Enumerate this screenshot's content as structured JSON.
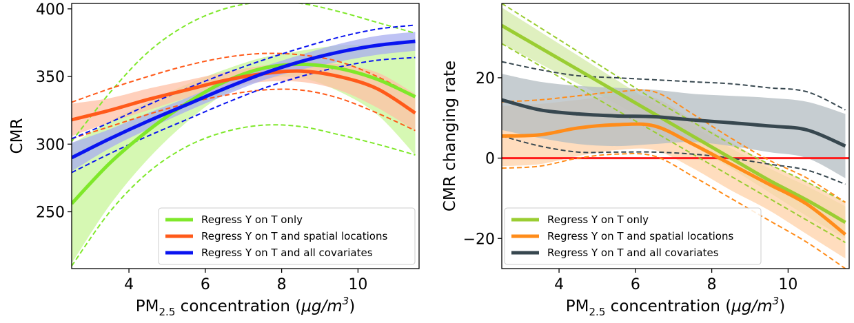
{
  "chart_data": [
    {
      "type": "line",
      "xlabel": "PM2.5 concentration (μg/m3)",
      "xlabel_parts": {
        "base": "PM",
        "sub": "2.5",
        "mid": " concentration (",
        "unit": "μg/m",
        "sup": "3",
        "end": ")"
      },
      "ylabel": "CMR",
      "xlim": [
        2.5,
        11.6
      ],
      "ylim": [
        208,
        404
      ],
      "x_ticks": [
        4,
        6,
        8,
        10
      ],
      "y_ticks": [
        250,
        300,
        350,
        400
      ],
      "x_tick_labels": [
        "4",
        "6",
        "8",
        "10"
      ],
      "y_tick_labels": [
        "250",
        "300",
        "350",
        "400"
      ],
      "grid": false,
      "legend_placement": "lower-right",
      "series": [
        {
          "name": "Regress Y on T only",
          "color": "#7fe82a",
          "fill": "#c8f59a",
          "x": [
            2.5,
            3.5,
            4.5,
            5.5,
            6.5,
            7.5,
            8.5,
            9.5,
            10.5,
            11.5
          ],
          "y": [
            256,
            286,
            310,
            330,
            346,
            356,
            359,
            356,
            348,
            335
          ],
          "band_lower": [
            212,
            255,
            289,
            316,
            337,
            348,
            349,
            339,
            322,
            292
          ],
          "band_upper": [
            300,
            317,
            331,
            344,
            355,
            364,
            369,
            373,
            374,
            378
          ],
          "dashed_lower": [
            210,
            250,
            279,
            298,
            309,
            314,
            313,
            307,
            300,
            292
          ],
          "dashed_upper": [
            302,
            338,
            368,
            388,
            400,
            405,
            404,
            398,
            390,
            382
          ]
        },
        {
          "name": "Regress Y on T and spatial locations",
          "color": "#ff5a1a",
          "fill": "#ffc0a6",
          "x": [
            2.5,
            3.5,
            4.5,
            5.5,
            6.5,
            7.5,
            8.5,
            9.5,
            10.5,
            11.5
          ],
          "y": [
            318,
            325,
            333,
            340,
            347,
            352,
            354,
            350,
            341,
            323
          ],
          "band_lower": [
            306,
            316,
            325,
            334,
            341,
            346,
            346,
            340,
            327,
            310
          ],
          "band_upper": [
            330,
            334,
            341,
            347,
            353,
            358,
            361,
            359,
            353,
            337
          ],
          "dashed_lower": [
            304,
            313,
            322,
            330,
            336,
            340,
            340,
            334,
            323,
            310
          ],
          "dashed_upper": [
            331,
            341,
            350,
            358,
            364,
            367,
            366,
            361,
            350,
            335
          ]
        },
        {
          "name": "Regress Y on T and all covariates",
          "color": "#0a14f0",
          "fill": "#a8aef0",
          "x": [
            2.5,
            3.5,
            4.5,
            5.5,
            6.5,
            7.5,
            8.5,
            9.5,
            10.5,
            11.5
          ],
          "y": [
            290,
            304,
            317,
            329,
            341,
            352,
            361,
            368,
            373,
            376
          ],
          "band_lower": [
            280,
            297,
            311,
            324,
            336,
            347,
            355,
            361,
            366,
            369
          ],
          "band_upper": [
            301,
            311,
            323,
            334,
            346,
            357,
            366,
            374,
            380,
            383
          ],
          "dashed_lower": [
            279,
            293,
            306,
            318,
            330,
            341,
            350,
            357,
            362,
            364
          ],
          "dashed_upper": [
            304,
            316,
            329,
            341,
            352,
            362,
            371,
            379,
            385,
            388
          ]
        }
      ]
    },
    {
      "type": "line",
      "xlabel": "PM2.5 concentration (μg/m3)",
      "xlabel_parts": {
        "base": "PM",
        "sub": "2.5",
        "mid": " concentration (",
        "unit": "μg/m",
        "sup": "3",
        "end": ")"
      },
      "ylabel": "CMR changing rate",
      "xlim": [
        2.5,
        11.6
      ],
      "ylim": [
        -27.5,
        38.5
      ],
      "x_ticks": [
        4,
        6,
        8,
        10
      ],
      "y_ticks": [
        -20,
        0,
        20
      ],
      "x_tick_labels": [
        "4",
        "6",
        "8",
        "10"
      ],
      "y_tick_labels": [
        "−20",
        "0",
        "20"
      ],
      "grid": false,
      "legend_placement": "lower-left",
      "reference_line": {
        "y": 0,
        "color": "#ff1a1a"
      },
      "series": [
        {
          "name": "Regress Y on T only",
          "color": "#9acd32",
          "fill": "#d4ebaa",
          "x": [
            2.5,
            3.5,
            4.5,
            5.5,
            6.5,
            7.5,
            8.5,
            9.5,
            10.5,
            11.5
          ],
          "y": [
            33,
            27.5,
            22,
            16.5,
            11,
            5.5,
            0,
            -5.5,
            -10.5,
            -16
          ],
          "band_lower": [
            28.5,
            23.5,
            18.5,
            13.5,
            8.5,
            3.0,
            -2.5,
            -8.5,
            -14.5,
            -20
          ],
          "band_upper": [
            37.5,
            31.5,
            25.5,
            19.5,
            13.5,
            8.0,
            2.5,
            -2.5,
            -7.0,
            -12
          ],
          "dashed_lower": [
            28.5,
            23,
            17.5,
            12,
            6.5,
            1,
            -4.5,
            -10,
            -15.5,
            -21
          ],
          "dashed_upper": [
            38.5,
            32.5,
            26.5,
            20.5,
            14.5,
            9,
            3.5,
            -1.5,
            -6,
            -11
          ]
        },
        {
          "name": "Regress Y on T and spatial locations",
          "color": "#ff8c1a",
          "fill": "#ffd2a8",
          "x": [
            2.5,
            3.5,
            4.5,
            5.5,
            6.5,
            7.5,
            8.5,
            9.5,
            10.5,
            11.5
          ],
          "y": [
            5.5,
            5.8,
            7.5,
            8.3,
            8.0,
            3.5,
            -1.5,
            -6.5,
            -11.5,
            -19
          ],
          "band_lower": [
            -2.0,
            -1.5,
            0.5,
            2.0,
            2.0,
            -2.5,
            -8,
            -13,
            -19,
            -25
          ],
          "band_upper": [
            13,
            13.5,
            14.5,
            15.5,
            15.0,
            9.5,
            4,
            -1.5,
            -6,
            -11
          ],
          "dashed_lower": [
            -2.5,
            -2.0,
            0,
            1,
            0.5,
            -4.5,
            -10,
            -15.5,
            -21,
            -27.5
          ],
          "dashed_upper": [
            14,
            14.5,
            15.5,
            16.5,
            16.5,
            11,
            5,
            -0.5,
            -5,
            -11
          ]
        },
        {
          "name": "Regress Y on T and all covariates",
          "color": "#37474f",
          "fill": "#b3bcc2",
          "x": [
            2.5,
            3.5,
            4.5,
            5.5,
            6.5,
            7.5,
            8.5,
            9.5,
            10.5,
            11.5
          ],
          "y": [
            14.5,
            12,
            11,
            10.5,
            10.3,
            9.5,
            8.8,
            8.0,
            7.0,
            3.0
          ],
          "band_lower": [
            7,
            5,
            3.5,
            3,
            3.5,
            4,
            3,
            1.5,
            0,
            -5
          ],
          "band_upper": [
            21,
            19,
            18,
            17.5,
            17,
            16,
            15.5,
            15,
            14,
            11
          ],
          "dashed_lower": [
            5.5,
            3,
            1.5,
            1.5,
            1.5,
            1,
            0,
            -1.5,
            -3,
            -6.5
          ],
          "dashed_upper": [
            24,
            22,
            20.5,
            20,
            19.5,
            19,
            18.5,
            17.5,
            16.5,
            12
          ]
        }
      ]
    }
  ]
}
